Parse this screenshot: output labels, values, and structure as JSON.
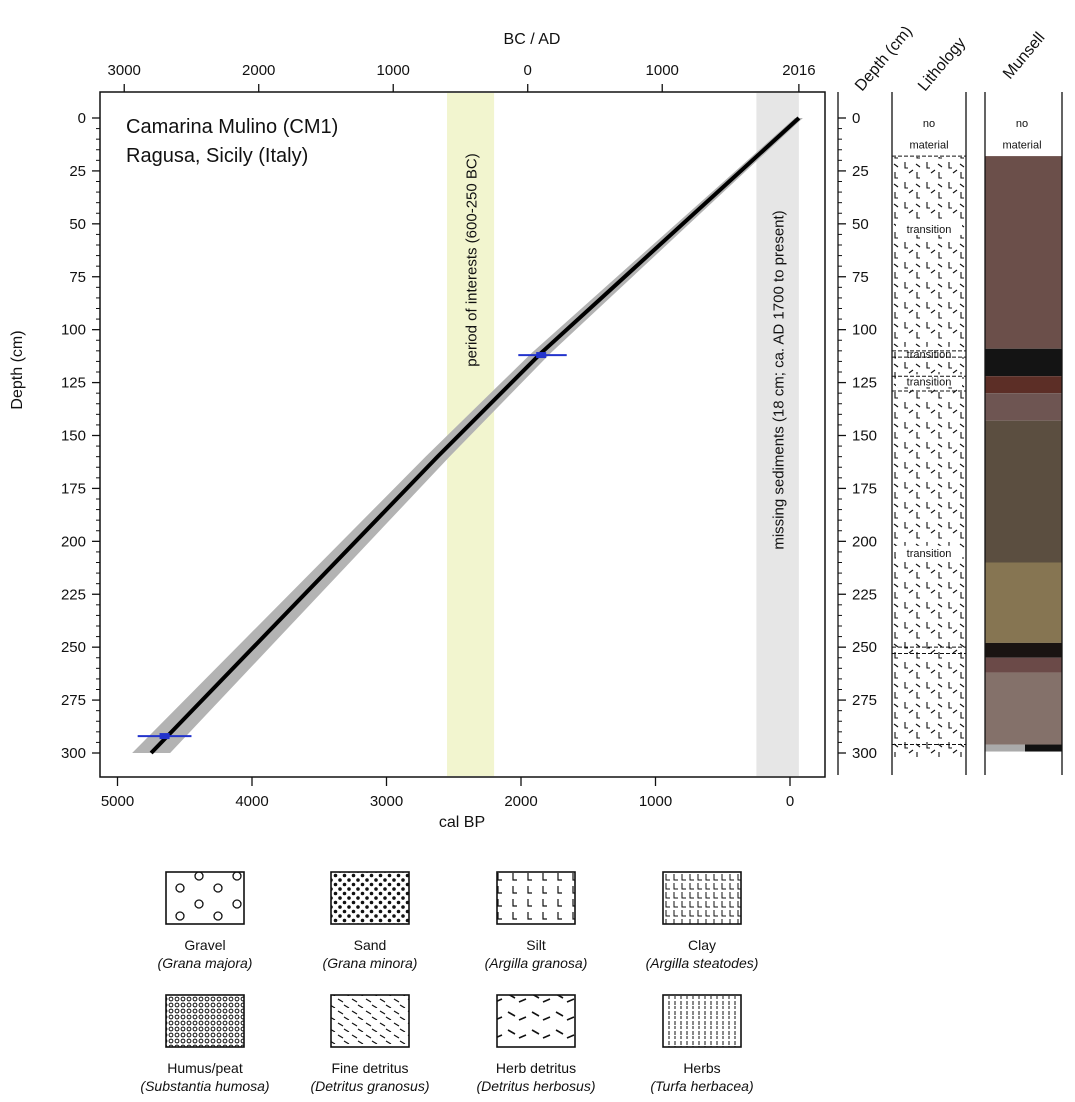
{
  "chart_data": {
    "type": "line",
    "title": "Camarina Mulino (CM1)",
    "subtitle": "Ragusa, Sicily (Italy)",
    "xlabel": "cal BP",
    "ylabel": "Depth (cm)",
    "top_xlabel": "BC / AD",
    "xlim": [
      5000,
      0
    ],
    "ylim": [
      300,
      0
    ],
    "x_ticks": [
      "5000",
      "4000",
      "3000",
      "2000",
      "1000",
      "0"
    ],
    "y_ticks": [
      "0",
      "25",
      "50",
      "75",
      "100",
      "125",
      "150",
      "175",
      "200",
      "225",
      "250",
      "275",
      "300"
    ],
    "top_x_ticks": [
      "3000",
      "2000",
      "1000",
      "0",
      "1000",
      "2016"
    ],
    "series": [
      {
        "values": [
          {
            "x": 4750,
            "y": 300
          },
          {
            "x": 2620,
            "y": 160
          },
          {
            "x": 1850,
            "y": 111
          },
          {
            "x": -66,
            "y": 0
          }
        ]
      }
    ],
    "dates": [
      {
        "x": 4650,
        "x_err_min": 4450,
        "x_err_max": 4850,
        "y": 292
      },
      {
        "x": 1850,
        "x_err_min": 1660,
        "x_err_max": 2020,
        "y": 112
      }
    ],
    "bands": [
      {
        "label": "period of interests (600-250 BC)",
        "x_from": 2550,
        "x_to": 2200,
        "color": "#f2f5cf"
      },
      {
        "label": "missing sediments (18 cm; ca. AD 1700 to present)",
        "x_from": 250,
        "x_to": -66,
        "color": "#e6e6e6"
      }
    ],
    "grid": false
  },
  "columns": {
    "depth_title": "Depth (cm)",
    "lithology_title": "Lithology",
    "munsell_title": "Munsell",
    "depth_ticks": [
      "0",
      "25",
      "50",
      "75",
      "100",
      "125",
      "150",
      "175",
      "200",
      "225",
      "250",
      "275",
      "300"
    ],
    "lithology_labels": [
      {
        "text": "no",
        "depth": 1
      },
      {
        "text": "material",
        "depth": 11
      },
      {
        "text": "transition",
        "depth": 51
      },
      {
        "text": "transition",
        "depth": 110
      },
      {
        "text": "transition",
        "depth": 123
      },
      {
        "text": "transition",
        "depth": 204
      }
    ],
    "munsell_labels": [
      {
        "text": "no",
        "depth": 1
      },
      {
        "text": "material",
        "depth": 11
      }
    ],
    "munsell_layers": [
      {
        "from": 18,
        "to": 109,
        "color": "#6b4f4a"
      },
      {
        "from": 109,
        "to": 122,
        "color": "#141414"
      },
      {
        "from": 122,
        "to": 130,
        "color": "#5c2e26"
      },
      {
        "from": 130,
        "to": 143,
        "color": "#6e5552"
      },
      {
        "from": 143,
        "to": 210,
        "color": "#5b4e40"
      },
      {
        "from": 210,
        "to": 248,
        "color": "#867552"
      },
      {
        "from": 248,
        "to": 255,
        "color": "#1a1412"
      },
      {
        "from": 255,
        "to": 262,
        "color": "#6b4a48"
      },
      {
        "from": 262,
        "to": 296,
        "color": "#84716a"
      }
    ]
  },
  "legend": [
    {
      "name": "Gravel",
      "latin": "(Grana majora)",
      "pattern": "gravel"
    },
    {
      "name": "Sand",
      "latin": "(Grana minora)",
      "pattern": "sand"
    },
    {
      "name": "Silt",
      "latin": "(Argilla granosa)",
      "pattern": "silt"
    },
    {
      "name": "Clay",
      "latin": "(Argilla steatodes)",
      "pattern": "clay"
    },
    {
      "name": "Humus/peat",
      "latin": "(Substantia humosa)",
      "pattern": "humus"
    },
    {
      "name": "Fine detritus",
      "latin": "(Detritus granosus)",
      "pattern": "finedet"
    },
    {
      "name": "Herb detritus",
      "latin": "(Detritus herbosus)",
      "pattern": "herbdet"
    },
    {
      "name": "Herbs",
      "latin": "(Turfa herbacea)",
      "pattern": "herbs"
    }
  ]
}
